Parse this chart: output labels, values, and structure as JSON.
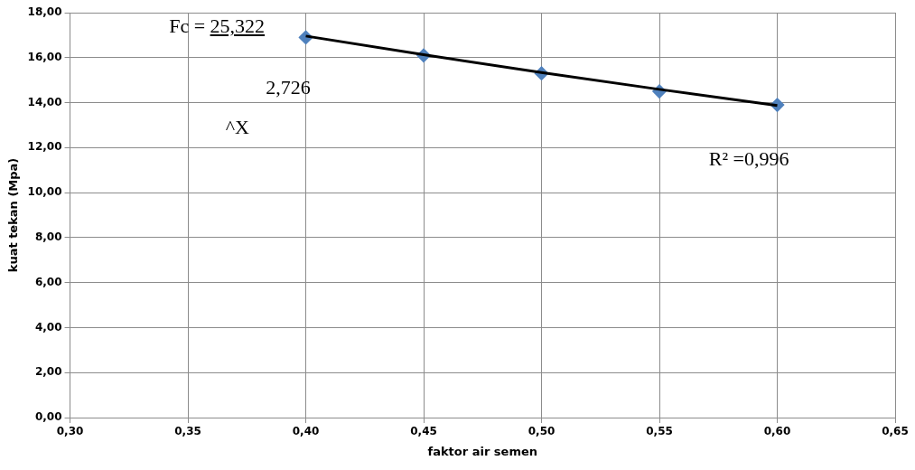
{
  "chart_data": {
    "type": "scatter",
    "xlabel": "faktor air semen",
    "ylabel": "kuat tekan (Mpa)",
    "series": [
      {
        "type": "scatter",
        "color": "#4f81bd",
        "x": [
          0.4,
          0.45,
          0.5,
          0.55,
          0.6
        ],
        "values": [
          16.9,
          16.1,
          15.3,
          14.5,
          13.9
        ],
        "marker": "diamond"
      },
      {
        "type": "line",
        "color": "#000000",
        "x": [
          0.4,
          0.45,
          0.5,
          0.55,
          0.6
        ],
        "values": [
          16.96,
          16.13,
          15.34,
          14.59,
          13.87
        ],
        "marker": "none",
        "line_style": "solid"
      }
    ],
    "xlim": [
      0.3,
      0.65
    ],
    "xticks": [
      {
        "value": 0.3,
        "label": "0,30"
      },
      {
        "value": 0.35,
        "label": "0,35"
      },
      {
        "value": 0.4,
        "label": "0,40"
      },
      {
        "value": 0.45,
        "label": "0,45"
      },
      {
        "value": 0.5,
        "label": "0,50"
      },
      {
        "value": 0.55,
        "label": "0,55"
      },
      {
        "value": 0.6,
        "label": "0,60"
      },
      {
        "value": 0.65,
        "label": "0,65"
      }
    ],
    "ylim": [
      0,
      18
    ],
    "yticks": [
      {
        "value": 0,
        "label": "0,00"
      },
      {
        "value": 2,
        "label": "2,00"
      },
      {
        "value": 4,
        "label": "4,00"
      },
      {
        "value": 6,
        "label": "6,00"
      },
      {
        "value": 8,
        "label": "8,00"
      },
      {
        "value": 10,
        "label": "10,00"
      },
      {
        "value": 12,
        "label": "12,00"
      },
      {
        "value": 14,
        "label": "14,00"
      },
      {
        "value": 16,
        "label": "16,00"
      },
      {
        "value": 18,
        "label": "18,00"
      }
    ],
    "grid": true,
    "legend": false,
    "annotations": [
      "Fc = 25,322",
      "2,726",
      "^X",
      "R² =0,996"
    ]
  }
}
